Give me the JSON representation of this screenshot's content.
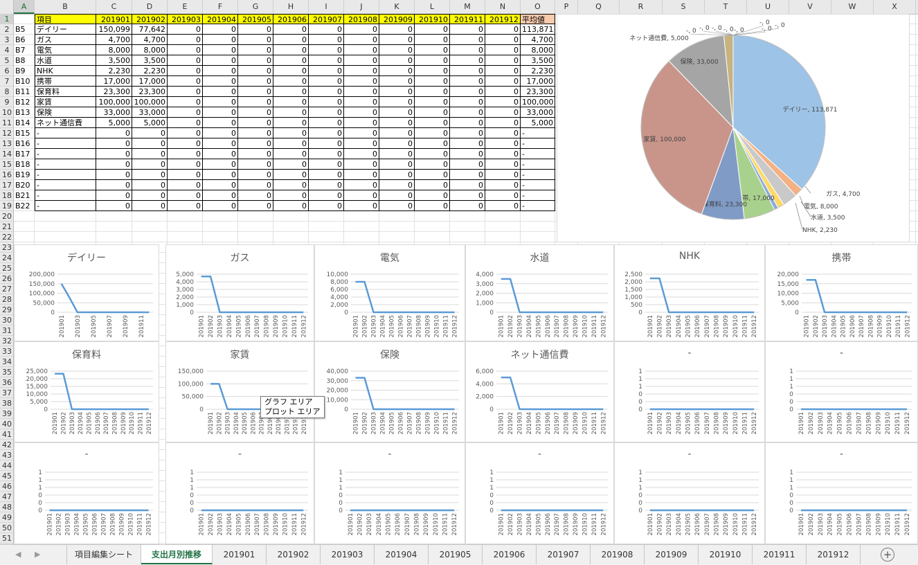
{
  "columns": [
    "A",
    "B",
    "C",
    "D",
    "E",
    "F",
    "G",
    "H",
    "I",
    "J",
    "K",
    "L",
    "M",
    "N",
    "O",
    "P",
    "Q",
    "R",
    "S",
    "T",
    "U",
    "V",
    "W",
    "X"
  ],
  "active_column": "A",
  "active_row": 1,
  "table": {
    "header_label": "項目",
    "months": [
      "201901",
      "201902",
      "201903",
      "201904",
      "201905",
      "201906",
      "201907",
      "201908",
      "201909",
      "201910",
      "201911",
      "201912"
    ],
    "average_label": "平均値",
    "rows": [
      {
        "code": "B5",
        "name": "デイリー",
        "values": [
          "150,099",
          "77,642",
          "0",
          "0",
          "0",
          "0",
          "0",
          "0",
          "0",
          "0",
          "0",
          "0"
        ],
        "avg": "113,871"
      },
      {
        "code": "B6",
        "name": "ガス",
        "values": [
          "4,700",
          "4,700",
          "0",
          "0",
          "0",
          "0",
          "0",
          "0",
          "0",
          "0",
          "0",
          "0"
        ],
        "avg": "4,700"
      },
      {
        "code": "B7",
        "name": "電気",
        "values": [
          "8,000",
          "8,000",
          "0",
          "0",
          "0",
          "0",
          "0",
          "0",
          "0",
          "0",
          "0",
          "0"
        ],
        "avg": "8,000"
      },
      {
        "code": "B8",
        "name": "水道",
        "values": [
          "3,500",
          "3,500",
          "0",
          "0",
          "0",
          "0",
          "0",
          "0",
          "0",
          "0",
          "0",
          "0"
        ],
        "avg": "3,500"
      },
      {
        "code": "B9",
        "name": "NHK",
        "values": [
          "2,230",
          "2,230",
          "0",
          "0",
          "0",
          "0",
          "0",
          "0",
          "0",
          "0",
          "0",
          "0"
        ],
        "avg": "2,230"
      },
      {
        "code": "B10",
        "name": "携帯",
        "values": [
          "17,000",
          "17,000",
          "0",
          "0",
          "0",
          "0",
          "0",
          "0",
          "0",
          "0",
          "0",
          "0"
        ],
        "avg": "17,000"
      },
      {
        "code": "B11",
        "name": "保育料",
        "values": [
          "23,300",
          "23,300",
          "0",
          "0",
          "0",
          "0",
          "0",
          "0",
          "0",
          "0",
          "0",
          "0"
        ],
        "avg": "23,300"
      },
      {
        "code": "B12",
        "name": "家賃",
        "values": [
          "100,000",
          "100,000",
          "0",
          "0",
          "0",
          "0",
          "0",
          "0",
          "0",
          "0",
          "0",
          "0"
        ],
        "avg": "100,000"
      },
      {
        "code": "B13",
        "name": "保険",
        "values": [
          "33,000",
          "33,000",
          "0",
          "0",
          "0",
          "0",
          "0",
          "0",
          "0",
          "0",
          "0",
          "0"
        ],
        "avg": "33,000"
      },
      {
        "code": "B14",
        "name": "ネット通信費",
        "values": [
          "5,000",
          "5,000",
          "0",
          "0",
          "0",
          "0",
          "0",
          "0",
          "0",
          "0",
          "0",
          "0"
        ],
        "avg": "5,000"
      },
      {
        "code": "B15",
        "name": "-",
        "values": [
          "0",
          "0",
          "0",
          "0",
          "0",
          "0",
          "0",
          "0",
          "0",
          "0",
          "0",
          "0"
        ],
        "avg": "-"
      },
      {
        "code": "B16",
        "name": "-",
        "values": [
          "0",
          "0",
          "0",
          "0",
          "0",
          "0",
          "0",
          "0",
          "0",
          "0",
          "0",
          "0"
        ],
        "avg": "-"
      },
      {
        "code": "B17",
        "name": "-",
        "values": [
          "0",
          "0",
          "0",
          "0",
          "0",
          "0",
          "0",
          "0",
          "0",
          "0",
          "0",
          "0"
        ],
        "avg": "-"
      },
      {
        "code": "B18",
        "name": "-",
        "values": [
          "0",
          "0",
          "0",
          "0",
          "0",
          "0",
          "0",
          "0",
          "0",
          "0",
          "0",
          "0"
        ],
        "avg": "-"
      },
      {
        "code": "B19",
        "name": "-",
        "values": [
          "0",
          "0",
          "0",
          "0",
          "0",
          "0",
          "0",
          "0",
          "0",
          "0",
          "0",
          "0"
        ],
        "avg": "-"
      },
      {
        "code": "B20",
        "name": "-",
        "values": [
          "0",
          "0",
          "0",
          "0",
          "0",
          "0",
          "0",
          "0",
          "0",
          "0",
          "0",
          "0"
        ],
        "avg": "-"
      },
      {
        "code": "B21",
        "name": "-",
        "values": [
          "0",
          "0",
          "0",
          "0",
          "0",
          "0",
          "0",
          "0",
          "0",
          "0",
          "0",
          "0"
        ],
        "avg": "-"
      },
      {
        "code": "B22",
        "name": "-",
        "values": [
          "0",
          "0",
          "0",
          "0",
          "0",
          "0",
          "0",
          "0",
          "0",
          "0",
          "0",
          "0"
        ],
        "avg": "-"
      }
    ]
  },
  "chart_data": [
    {
      "type": "pie",
      "slices": [
        {
          "label": "デイリー",
          "value": 113871,
          "display": "デイリー, 113,871",
          "color": "#9dc3e6"
        },
        {
          "label": "ガス",
          "value": 4700,
          "display": "ガス, 4,700",
          "color": "#f4b183"
        },
        {
          "label": "電気",
          "value": 8000,
          "display": "電気, 8,000",
          "color": "#c9c9c9"
        },
        {
          "label": "水道",
          "value": 3500,
          "display": "水道, 3,500",
          "color": "#ffd966"
        },
        {
          "label": "NHK",
          "value": 2230,
          "display": "NHK, 2,230",
          "color": "#8faadc"
        },
        {
          "label": "携帯",
          "value": 17000,
          "display": "携帯, 17,000",
          "color": "#a9d18e"
        },
        {
          "label": "保育料",
          "value": 23300,
          "display": "保育料, 23,300",
          "color": "#7f9bc6"
        },
        {
          "label": "家賃",
          "value": 100000,
          "display": "家賃, 100,000",
          "color": "#c9958b"
        },
        {
          "label": "保険",
          "value": 33000,
          "display": "保険, 33,000",
          "color": "#a5a5a5"
        },
        {
          "label": "ネット通信費",
          "value": 5000,
          "display": "ネット通信費, 5,000",
          "color": "#c7b37f"
        }
      ],
      "extra_labels": [
        "-, 0",
        "-, 0",
        "-, 0",
        "-, 0",
        "-, 0",
        "-, 0",
        "-, 0",
        "-, 0"
      ]
    },
    {
      "type": "line",
      "title": "デイリー",
      "x": [
        "201901",
        "201902",
        "201903",
        "201904",
        "201905",
        "201906",
        "201907",
        "201908",
        "201909",
        "201910",
        "201911",
        "201912"
      ],
      "y": [
        150099,
        77642,
        0,
        0,
        0,
        0,
        0,
        0,
        0,
        0,
        0,
        0
      ],
      "yticks": [
        "0",
        "50,000",
        "100,000",
        "150,000",
        "200,000"
      ],
      "ylim": [
        0,
        200000
      ],
      "xticks": [
        "201901",
        "201903",
        "201905",
        "201907",
        "201909",
        "201911"
      ]
    },
    {
      "type": "line",
      "title": "ガス",
      "x": [
        "201901",
        "201902",
        "201903",
        "201904",
        "201905",
        "201906",
        "201907",
        "201908",
        "201909",
        "201910",
        "201911",
        "201912"
      ],
      "y": [
        4700,
        4700,
        0,
        0,
        0,
        0,
        0,
        0,
        0,
        0,
        0,
        0
      ],
      "yticks": [
        "0",
        "1,000",
        "2,000",
        "3,000",
        "4,000",
        "5,000"
      ],
      "ylim": [
        0,
        5000
      ]
    },
    {
      "type": "line",
      "title": "電気",
      "x": [
        "201901",
        "201902",
        "201903",
        "201904",
        "201905",
        "201906",
        "201907",
        "201908",
        "201909",
        "201910",
        "201911",
        "201912"
      ],
      "y": [
        8000,
        8000,
        0,
        0,
        0,
        0,
        0,
        0,
        0,
        0,
        0,
        0
      ],
      "yticks": [
        "0",
        "2,000",
        "4,000",
        "6,000",
        "8,000",
        "10,000"
      ],
      "ylim": [
        0,
        10000
      ]
    },
    {
      "type": "line",
      "title": "水道",
      "x": [
        "201901",
        "201902",
        "201903",
        "201904",
        "201905",
        "201906",
        "201907",
        "201908",
        "201909",
        "201910",
        "201911",
        "201912"
      ],
      "y": [
        3500,
        3500,
        0,
        0,
        0,
        0,
        0,
        0,
        0,
        0,
        0,
        0
      ],
      "yticks": [
        "0",
        "1,000",
        "2,000",
        "3,000",
        "4,000"
      ],
      "ylim": [
        0,
        4000
      ]
    },
    {
      "type": "line",
      "title": "NHK",
      "x": [
        "201901",
        "201902",
        "201903",
        "201904",
        "201905",
        "201906",
        "201907",
        "201908",
        "201909",
        "201910",
        "201911",
        "201912"
      ],
      "y": [
        2230,
        2230,
        0,
        0,
        0,
        0,
        0,
        0,
        0,
        0,
        0,
        0
      ],
      "yticks": [
        "0",
        "500",
        "1,000",
        "1,500",
        "2,000",
        "2,500"
      ],
      "ylim": [
        0,
        2500
      ]
    },
    {
      "type": "line",
      "title": "携帯",
      "x": [
        "201901",
        "201902",
        "201903",
        "201904",
        "201905",
        "201906",
        "201907",
        "201908",
        "201909",
        "201910",
        "201911",
        "201912"
      ],
      "y": [
        17000,
        17000,
        0,
        0,
        0,
        0,
        0,
        0,
        0,
        0,
        0,
        0
      ],
      "yticks": [
        "0",
        "5,000",
        "10,000",
        "15,000",
        "20,000"
      ],
      "ylim": [
        0,
        20000
      ]
    },
    {
      "type": "line",
      "title": "保育料",
      "x": [
        "201901",
        "201902",
        "201903",
        "201904",
        "201905",
        "201906",
        "201907",
        "201908",
        "201909",
        "201910",
        "201911",
        "201912"
      ],
      "y": [
        23300,
        23300,
        0,
        0,
        0,
        0,
        0,
        0,
        0,
        0,
        0,
        0
      ],
      "yticks": [
        "0",
        "5,000",
        "10,000",
        "15,000",
        "20,000",
        "25,000"
      ],
      "ylim": [
        0,
        25000
      ]
    },
    {
      "type": "line",
      "title": "家賃",
      "x": [
        "201901",
        "201902",
        "201903",
        "201904",
        "201905",
        "201906",
        "201907",
        "201908",
        "201909",
        "201910",
        "201911",
        "201912"
      ],
      "y": [
        100000,
        100000,
        0,
        0,
        0,
        0,
        0,
        0,
        0,
        0,
        0,
        0
      ],
      "yticks": [
        "0",
        "50,000",
        "100,000",
        "150,000"
      ],
      "ylim": [
        0,
        150000
      ]
    },
    {
      "type": "line",
      "title": "保険",
      "x": [
        "201901",
        "201902",
        "201903",
        "201904",
        "201905",
        "201906",
        "201907",
        "201908",
        "201909",
        "201910",
        "201911",
        "201912"
      ],
      "y": [
        33000,
        33000,
        0,
        0,
        0,
        0,
        0,
        0,
        0,
        0,
        0,
        0
      ],
      "yticks": [
        "0",
        "10,000",
        "20,000",
        "30,000",
        "40,000"
      ],
      "ylim": [
        0,
        40000
      ]
    },
    {
      "type": "line",
      "title": "ネット通信費",
      "x": [
        "201901",
        "201902",
        "201903",
        "201904",
        "201905",
        "201906",
        "201907",
        "201908",
        "201909",
        "201910",
        "201911",
        "201912"
      ],
      "y": [
        5000,
        5000,
        0,
        0,
        0,
        0,
        0,
        0,
        0,
        0,
        0,
        0
      ],
      "yticks": [
        "0",
        "2,000",
        "4,000",
        "6,000"
      ],
      "ylim": [
        0,
        6000
      ]
    },
    {
      "type": "line",
      "title": "-",
      "x": [
        "201901",
        "201902",
        "201903",
        "201904",
        "201905",
        "201906",
        "201907",
        "201908",
        "201909",
        "201910",
        "201911",
        "201912"
      ],
      "y": [
        0,
        0,
        0,
        0,
        0,
        0,
        0,
        0,
        0,
        0,
        0,
        0
      ],
      "yticks": [
        "0",
        "0",
        "0",
        "1",
        "1",
        "1"
      ],
      "ylim": [
        0,
        1
      ]
    },
    {
      "type": "line",
      "title": "-",
      "x": [
        "201901",
        "201902",
        "201903",
        "201904",
        "201905",
        "201906",
        "201907",
        "201908",
        "201909",
        "201910",
        "201911",
        "201912"
      ],
      "y": [
        0,
        0,
        0,
        0,
        0,
        0,
        0,
        0,
        0,
        0,
        0,
        0
      ],
      "yticks": [
        "0",
        "0",
        "0",
        "1",
        "1",
        "1"
      ],
      "ylim": [
        0,
        1
      ]
    },
    {
      "type": "line",
      "title": "-",
      "x": [
        "201901",
        "201902",
        "201903",
        "201904",
        "201905",
        "201906",
        "201907",
        "201908",
        "201909",
        "201910",
        "201911",
        "201912"
      ],
      "y": [
        0,
        0,
        0,
        0,
        0,
        0,
        0,
        0,
        0,
        0,
        0,
        0
      ],
      "yticks": [
        "0",
        "0",
        "0",
        "1",
        "1",
        "1"
      ],
      "ylim": [
        0,
        1
      ]
    },
    {
      "type": "line",
      "title": "-",
      "x": [
        "201901",
        "201902",
        "201903",
        "201904",
        "201905",
        "201906",
        "201907",
        "201908",
        "201909",
        "201910",
        "201911",
        "201912"
      ],
      "y": [
        0,
        0,
        0,
        0,
        0,
        0,
        0,
        0,
        0,
        0,
        0,
        0
      ],
      "yticks": [
        "0",
        "0",
        "0",
        "1",
        "1",
        "1"
      ],
      "ylim": [
        0,
        1
      ]
    },
    {
      "type": "line",
      "title": "-",
      "x": [
        "201901",
        "201902",
        "201903",
        "201904",
        "201905",
        "201906",
        "201907",
        "201908",
        "201909",
        "201910",
        "201911",
        "201912"
      ],
      "y": [
        0,
        0,
        0,
        0,
        0,
        0,
        0,
        0,
        0,
        0,
        0,
        0
      ],
      "yticks": [
        "0",
        "0",
        "0",
        "1",
        "1",
        "1"
      ],
      "ylim": [
        0,
        1
      ]
    },
    {
      "type": "line",
      "title": "-",
      "x": [
        "201901",
        "201902",
        "201903",
        "201904",
        "201905",
        "201906",
        "201907",
        "201908",
        "201909",
        "201910",
        "201911",
        "201912"
      ],
      "y": [
        0,
        0,
        0,
        0,
        0,
        0,
        0,
        0,
        0,
        0,
        0,
        0
      ],
      "yticks": [
        "0",
        "0",
        "0",
        "1",
        "1",
        "1"
      ],
      "ylim": [
        0,
        1
      ]
    },
    {
      "type": "line",
      "title": "-",
      "x": [
        "201901",
        "201902",
        "201903",
        "201904",
        "201905",
        "201906",
        "201907",
        "201908",
        "201909",
        "201910",
        "201911",
        "201912"
      ],
      "y": [
        0,
        0,
        0,
        0,
        0,
        0,
        0,
        0,
        0,
        0,
        0,
        0
      ],
      "yticks": [
        "0",
        "0",
        "0",
        "1",
        "1",
        "1"
      ],
      "ylim": [
        0,
        1
      ]
    },
    {
      "type": "line",
      "title": "-",
      "x": [
        "201901",
        "201902",
        "201903",
        "201904",
        "201905",
        "201906",
        "201907",
        "201908",
        "201909",
        "201910",
        "201911",
        "201912"
      ],
      "y": [
        0,
        0,
        0,
        0,
        0,
        0,
        0,
        0,
        0,
        0,
        0,
        0
      ],
      "yticks": [
        "0",
        "0",
        "0",
        "1",
        "1",
        "1"
      ],
      "ylim": [
        0,
        1
      ]
    }
  ],
  "tooltip": {
    "line1": "グラフ エリア",
    "line2": "プロット エリア"
  },
  "sheet_tabs": [
    "項目編集シート",
    "支出月別推移",
    "201901",
    "201902",
    "201903",
    "201904",
    "201905",
    "201906",
    "201907",
    "201908",
    "201909",
    "201910",
    "201911",
    "201912"
  ],
  "active_tab": "支出月別推移",
  "colors": {
    "line": "#5b9bd5",
    "header_yellow": "#ffff00",
    "header_orange": "#f8cbad",
    "excel_green": "#217346"
  }
}
